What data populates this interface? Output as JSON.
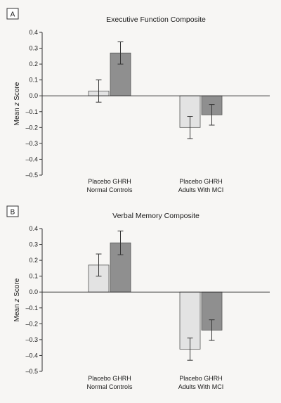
{
  "chart_data": [
    {
      "type": "bar",
      "panel_label": "A",
      "title": "Executive Function Composite",
      "ylabel": "Mean z Score",
      "ylim": [
        -0.5,
        0.4
      ],
      "yticks": [
        0.4,
        0.3,
        0.2,
        0.1,
        0.0,
        -0.1,
        -0.2,
        -0.3,
        -0.4,
        -0.5
      ],
      "ytick_labels": [
        "0.4",
        "0.3",
        "0.2",
        "0.1",
        "0.0",
        "–0.1",
        "–0.2",
        "–0.3",
        "–0.4",
        "–0.5"
      ],
      "groups": [
        {
          "label_line1": "Placebo GHRH",
          "label_line2": "Normal Controls"
        },
        {
          "label_line1": "Placebo GHRH",
          "label_line2": "Adults With MCI"
        }
      ],
      "series": [
        {
          "color": "#e3e3e3",
          "values": [
            0.03,
            -0.2
          ],
          "error": [
            0.07,
            0.07
          ]
        },
        {
          "color": "#8f8f8f",
          "values": [
            0.27,
            -0.12
          ],
          "error": [
            0.07,
            0.065
          ]
        }
      ]
    },
    {
      "type": "bar",
      "panel_label": "B",
      "title": "Verbal Memory Composite",
      "ylabel": "Mean z Score",
      "ylim": [
        -0.5,
        0.4
      ],
      "yticks": [
        0.4,
        0.3,
        0.2,
        0.1,
        0.0,
        -0.1,
        -0.2,
        -0.3,
        -0.4,
        -0.5
      ],
      "ytick_labels": [
        "0.4",
        "0.3",
        "0.2",
        "0.1",
        "0.0",
        "–0.1",
        "–0.2",
        "–0.3",
        "–0.4",
        "–0.5"
      ],
      "groups": [
        {
          "label_line1": "Placebo GHRH",
          "label_line2": "Normal Controls"
        },
        {
          "label_line1": "Placebo GHRH",
          "label_line2": "Adults With MCI"
        }
      ],
      "series": [
        {
          "color": "#e3e3e3",
          "values": [
            0.17,
            -0.36
          ],
          "error": [
            0.07,
            0.07
          ]
        },
        {
          "color": "#8f8f8f",
          "values": [
            0.31,
            -0.24
          ],
          "error": [
            0.075,
            0.065
          ]
        }
      ]
    }
  ]
}
